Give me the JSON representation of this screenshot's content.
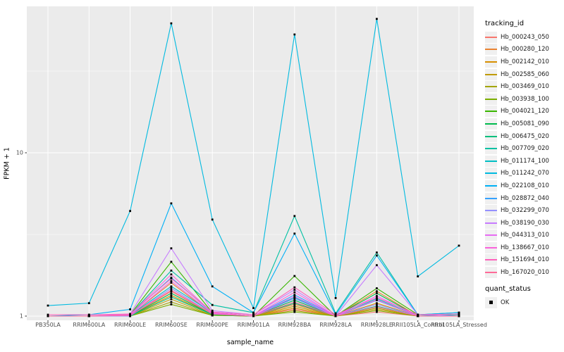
{
  "figure": {
    "panel_bg": "#ebebeb",
    "grid_color": "#ffffff",
    "tick_color": "#333333",
    "point_color": "#000000",
    "tick_label_color": "#4d4d4d"
  },
  "chart_data": {
    "type": "line",
    "title": "",
    "xlabel": "sample_name",
    "ylabel": "FPKM + 1",
    "y_scale": "log10",
    "ylim": [
      0.94,
      79
    ],
    "yticks": [
      1,
      10
    ],
    "ytick_labels": [
      "1",
      "10"
    ],
    "y_minor": [
      3.1623,
      31.623
    ],
    "grid": true,
    "legend_position": "right",
    "categories": [
      "PB350LA",
      "RRIM600LA",
      "RRIM600LE",
      "RRIM600SE",
      "RRIM600PE",
      "RRIM901LA",
      "RRIM928BA",
      "RRIM928LA",
      "RRIM928LE",
      "RRII105LA_Control",
      "RRII105LA_Stressed"
    ],
    "series": [
      {
        "name": "Hb_000243_050",
        "color": "#F8766D",
        "values": [
          1.0,
          1.0,
          1.0,
          1.42,
          1.02,
          1.0,
          1.1,
          1.0,
          1.06,
          1.0,
          1.0
        ]
      },
      {
        "name": "Hb_000280_120",
        "color": "#EA8331",
        "values": [
          1.0,
          1.0,
          1.01,
          1.6,
          1.03,
          1.0,
          1.18,
          1.0,
          1.42,
          1.0,
          1.0
        ]
      },
      {
        "name": "Hb_002142_010",
        "color": "#D89000",
        "values": [
          1.0,
          1.0,
          1.0,
          1.34,
          1.02,
          1.0,
          1.12,
          1.0,
          1.2,
          1.0,
          1.0
        ]
      },
      {
        "name": "Hb_002585_060",
        "color": "#C09B00",
        "values": [
          1.0,
          1.0,
          1.0,
          1.27,
          1.01,
          1.0,
          1.15,
          1.0,
          1.1,
          1.0,
          1.0
        ]
      },
      {
        "name": "Hb_003469_010",
        "color": "#A3A500",
        "values": [
          1.0,
          1.0,
          1.0,
          1.22,
          1.01,
          1.0,
          1.08,
          1.0,
          1.12,
          1.0,
          1.0
        ]
      },
      {
        "name": "Hb_003938_100",
        "color": "#7CAE00",
        "values": [
          1.0,
          1.0,
          1.0,
          1.18,
          1.01,
          1.0,
          1.06,
          1.0,
          1.08,
          1.0,
          1.0
        ]
      },
      {
        "name": "Hb_004021_120",
        "color": "#39B600",
        "values": [
          1.0,
          1.0,
          1.02,
          2.15,
          1.05,
          1.0,
          1.76,
          1.0,
          1.48,
          1.02,
          1.0
        ]
      },
      {
        "name": "Hb_005081_090",
        "color": "#00BB4E",
        "values": [
          1.0,
          1.0,
          1.0,
          1.38,
          1.02,
          1.0,
          1.25,
          1.0,
          1.38,
          1.0,
          1.0
        ]
      },
      {
        "name": "Hb_006475_020",
        "color": "#00BF7D",
        "values": [
          1.0,
          1.0,
          1.0,
          1.31,
          1.02,
          1.0,
          1.2,
          1.0,
          1.15,
          1.0,
          1.0
        ]
      },
      {
        "name": "Hb_007709_020",
        "color": "#00C1A3",
        "values": [
          1.0,
          1.0,
          1.02,
          1.9,
          1.17,
          1.05,
          4.1,
          1.04,
          2.45,
          1.02,
          1.05
        ]
      },
      {
        "name": "Hb_011174_100",
        "color": "#00BFC4",
        "values": [
          1.0,
          1.0,
          1.01,
          1.52,
          1.05,
          1.0,
          1.3,
          1.0,
          1.28,
          1.0,
          1.02
        ]
      },
      {
        "name": "Hb_011242_070",
        "color": "#00BAE0",
        "values": [
          1.16,
          1.2,
          4.4,
          62.0,
          3.9,
          1.12,
          53.0,
          1.29,
          66.0,
          1.75,
          2.7
        ]
      },
      {
        "name": "Hb_022108_010",
        "color": "#00B0F6",
        "values": [
          1.0,
          1.02,
          1.1,
          4.9,
          1.52,
          1.05,
          3.2,
          1.02,
          2.35,
          1.02,
          1.05
        ]
      },
      {
        "name": "Hb_028872_040",
        "color": "#35A2FF",
        "values": [
          1.0,
          1.0,
          1.02,
          1.72,
          1.05,
          1.0,
          1.35,
          1.0,
          1.25,
          1.0,
          1.0
        ]
      },
      {
        "name": "Hb_032299_070",
        "color": "#9590FF",
        "values": [
          1.0,
          1.0,
          1.0,
          1.48,
          1.03,
          1.0,
          1.28,
          1.0,
          1.18,
          1.0,
          1.0
        ]
      },
      {
        "name": "Hb_038190_030",
        "color": "#C77CFF",
        "values": [
          1.0,
          1.0,
          1.03,
          2.6,
          1.08,
          1.02,
          1.45,
          1.0,
          2.05,
          1.02,
          1.0
        ]
      },
      {
        "name": "Hb_044313_010",
        "color": "#E76BF3",
        "values": [
          1.0,
          1.0,
          1.01,
          1.64,
          1.04,
          1.0,
          1.32,
          1.0,
          1.33,
          1.0,
          1.0
        ]
      },
      {
        "name": "Hb_138667_010",
        "color": "#FA62DB",
        "values": [
          1.0,
          1.0,
          1.02,
          1.8,
          1.05,
          1.0,
          1.4,
          1.0,
          1.26,
          1.0,
          1.0
        ]
      },
      {
        "name": "Hb_151694_010",
        "color": "#FF62BC",
        "values": [
          1.02,
          1.02,
          1.03,
          1.7,
          1.06,
          1.02,
          1.5,
          1.02,
          1.3,
          1.02,
          1.03
        ]
      },
      {
        "name": "Hb_167020_010",
        "color": "#FF6A98",
        "values": [
          1.0,
          1.0,
          1.01,
          1.44,
          1.03,
          1.0,
          1.22,
          1.0,
          1.14,
          1.0,
          1.0
        ]
      }
    ],
    "legend": {
      "tracking_title": "tracking_id",
      "quant_title": "quant_status",
      "quant_items": [
        {
          "label": "OK"
        }
      ]
    }
  }
}
